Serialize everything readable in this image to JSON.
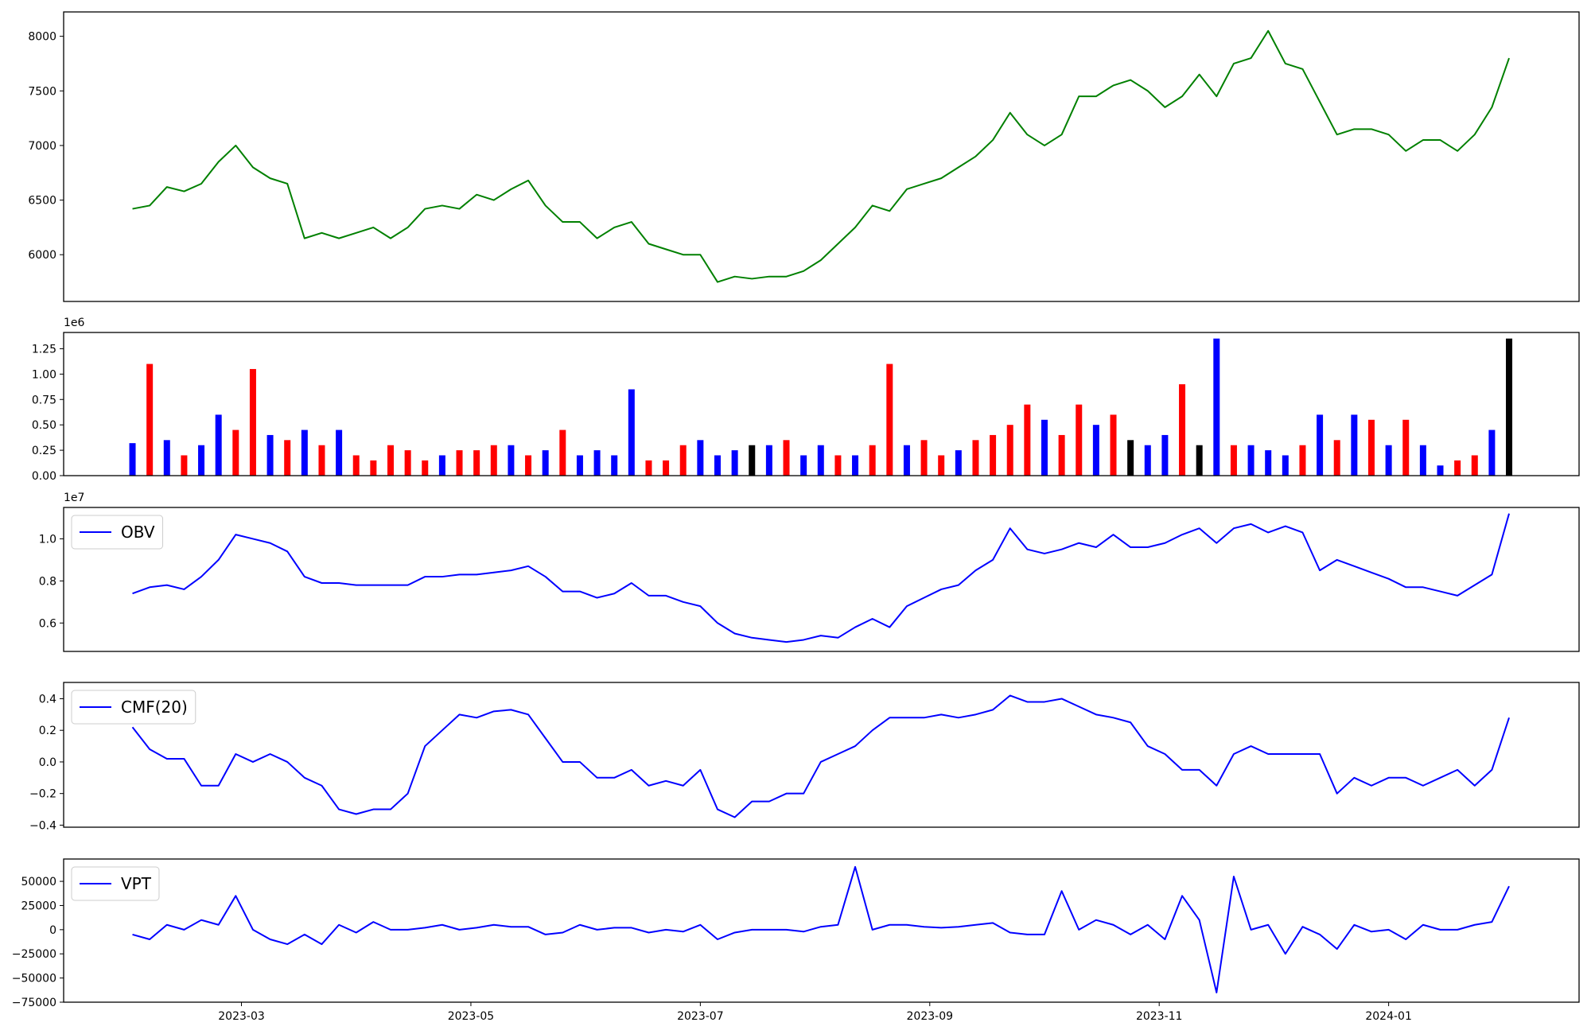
{
  "chart_data": [
    {
      "type": "line",
      "color": "green",
      "x": [
        1.05,
        1.2,
        1.35,
        1.5,
        1.65,
        1.8,
        1.95,
        2.1,
        2.25,
        2.4,
        2.55,
        2.7,
        2.85,
        3,
        3.15,
        3.3,
        3.45,
        3.6,
        3.75,
        3.9,
        4.05,
        4.2,
        4.35,
        4.5,
        4.65,
        4.8,
        4.95,
        5.1,
        5.25,
        5.4,
        5.55,
        5.7,
        5.85,
        6,
        6.15,
        6.3,
        6.45,
        6.6,
        6.75,
        6.9,
        7.05,
        7.2,
        7.35,
        7.5,
        7.65,
        7.8,
        7.95,
        8.1,
        8.25,
        8.4,
        8.55,
        8.7,
        8.85,
        9,
        9.15,
        9.3,
        9.45,
        9.6,
        9.75,
        9.9,
        10.05,
        10.2,
        10.35,
        10.5,
        10.65,
        10.8,
        10.95,
        11.1,
        11.25,
        11.4,
        11.55,
        11.7,
        11.85,
        12,
        12.15,
        12.3,
        12.45,
        12.6,
        12.75,
        12.9,
        13.05
      ],
      "values": [
        6420,
        6450,
        6620,
        6580,
        6650,
        6850,
        7000,
        6800,
        6700,
        6650,
        6150,
        6200,
        6150,
        6200,
        6250,
        6150,
        6250,
        6420,
        6450,
        6420,
        6550,
        6500,
        6600,
        6680,
        6450,
        6300,
        6300,
        6150,
        6250,
        6300,
        6100,
        6050,
        6000,
        6000,
        5750,
        5800,
        5780,
        5800,
        5800,
        5850,
        5950,
        6100,
        6250,
        6450,
        6400,
        6600,
        6650,
        6700,
        6800,
        6900,
        7050,
        7300,
        7100,
        7000,
        7100,
        7450,
        7450,
        7550,
        7600,
        7500,
        7350,
        7450,
        7650,
        7450,
        7750,
        7800,
        8050,
        7750,
        7700,
        7400,
        7100,
        7150,
        7150,
        7100,
        6950,
        7050,
        7050,
        6950,
        7100,
        7350,
        7800
      ],
      "xlim": [
        0.45,
        13.66
      ],
      "ylim": [
        5572,
        8223
      ],
      "yticks": [
        6000,
        6500,
        7000,
        7500,
        8000
      ]
    },
    {
      "type": "bar",
      "y_offset_label": "1e6",
      "x": [
        1.05,
        1.2,
        1.35,
        1.5,
        1.65,
        1.8,
        1.95,
        2.1,
        2.25,
        2.4,
        2.55,
        2.7,
        2.85,
        3,
        3.15,
        3.3,
        3.45,
        3.6,
        3.75,
        3.9,
        4.05,
        4.2,
        4.35,
        4.5,
        4.65,
        4.8,
        4.95,
        5.1,
        5.25,
        5.4,
        5.55,
        5.7,
        5.85,
        6,
        6.15,
        6.3,
        6.45,
        6.6,
        6.75,
        6.9,
        7.05,
        7.2,
        7.35,
        7.5,
        7.65,
        7.8,
        7.95,
        8.1,
        8.25,
        8.4,
        8.55,
        8.7,
        8.85,
        9,
        9.15,
        9.3,
        9.45,
        9.6,
        9.75,
        9.9,
        10.05,
        10.2,
        10.35,
        10.5,
        10.65,
        10.8,
        10.95,
        11.1,
        11.25,
        11.4,
        11.55,
        11.7,
        11.85,
        12,
        12.15,
        12.3,
        12.45,
        12.6,
        12.75,
        12.9,
        13.05
      ],
      "values": [
        320000,
        1100000,
        350000,
        200000,
        300000,
        600000,
        450000,
        1050000,
        400000,
        350000,
        450000,
        300000,
        450000,
        200000,
        150000,
        300000,
        250000,
        150000,
        200000,
        250000,
        250000,
        300000,
        300000,
        200000,
        250000,
        450000,
        200000,
        250000,
        200000,
        850000,
        150000,
        150000,
        300000,
        350000,
        200000,
        250000,
        300000,
        300000,
        350000,
        200000,
        300000,
        200000,
        200000,
        300000,
        1100000,
        300000,
        350000,
        200000,
        250000,
        350000,
        400000,
        500000,
        700000,
        550000,
        400000,
        700000,
        500000,
        600000,
        350000,
        300000,
        400000,
        900000,
        300000,
        1350000,
        300000,
        300000,
        250000,
        200000,
        300000,
        600000,
        350000,
        600000,
        550000,
        300000,
        550000,
        300000,
        100000,
        150000,
        200000,
        450000,
        1350000
      ],
      "colors": [
        "blue",
        "red",
        "blue",
        "red",
        "blue",
        "blue",
        "red",
        "red",
        "blue",
        "red",
        "blue",
        "red",
        "blue",
        "red",
        "red",
        "red",
        "red",
        "red",
        "blue",
        "red",
        "red",
        "red",
        "blue",
        "red",
        "blue",
        "red",
        "blue",
        "blue",
        "blue",
        "blue",
        "red",
        "red",
        "red",
        "blue",
        "blue",
        "blue",
        "black",
        "blue",
        "red",
        "blue",
        "blue",
        "red",
        "blue",
        "red",
        "red",
        "blue",
        "red",
        "red",
        "blue",
        "red",
        "red",
        "red",
        "red",
        "blue",
        "red",
        "red",
        "blue",
        "red",
        "black",
        "blue",
        "blue",
        "red",
        "black",
        "blue",
        "red",
        "blue",
        "blue",
        "blue",
        "red",
        "blue",
        "red",
        "blue",
        "red",
        "blue",
        "red",
        "blue",
        "blue",
        "red",
        "red",
        "blue",
        "black"
      ],
      "xlim": [
        0.45,
        13.66
      ],
      "ylim": [
        0,
        1410000
      ],
      "yticks": [
        {
          "value": 0,
          "label": "0.00"
        },
        {
          "value": 250000,
          "label": "0.25"
        },
        {
          "value": 500000,
          "label": "0.50"
        },
        {
          "value": 750000,
          "label": "0.75"
        },
        {
          "value": 1000000,
          "label": "1.00"
        },
        {
          "value": 1250000,
          "label": "1.25"
        }
      ]
    },
    {
      "type": "line",
      "y_offset_label": "1e7",
      "legend": "upper left",
      "x": [
        1.05,
        1.2,
        1.35,
        1.5,
        1.65,
        1.8,
        1.95,
        2.1,
        2.25,
        2.4,
        2.55,
        2.7,
        2.85,
        3,
        3.15,
        3.3,
        3.45,
        3.6,
        3.75,
        3.9,
        4.05,
        4.2,
        4.35,
        4.5,
        4.65,
        4.8,
        4.95,
        5.1,
        5.25,
        5.4,
        5.55,
        5.7,
        5.85,
        6,
        6.15,
        6.3,
        6.45,
        6.6,
        6.75,
        6.9,
        7.05,
        7.2,
        7.35,
        7.5,
        7.65,
        7.8,
        7.95,
        8.1,
        8.25,
        8.4,
        8.55,
        8.7,
        8.85,
        9,
        9.15,
        9.3,
        9.45,
        9.6,
        9.75,
        9.9,
        10.05,
        10.2,
        10.35,
        10.5,
        10.65,
        10.8,
        10.95,
        11.1,
        11.25,
        11.4,
        11.55,
        11.7,
        11.85,
        12,
        12.15,
        12.3,
        12.45,
        12.6,
        12.75,
        12.9,
        13.05
      ],
      "series": [
        {
          "name": "OBV",
          "color": "blue",
          "values": [
            7400000,
            7700000,
            7800000,
            7600000,
            8200000,
            9000000,
            10200000,
            10000000,
            9800000,
            9400000,
            8200000,
            7900000,
            7900000,
            7800000,
            7800000,
            7800000,
            7800000,
            8200000,
            8200000,
            8300000,
            8300000,
            8400000,
            8500000,
            8700000,
            8200000,
            7500000,
            7500000,
            7200000,
            7400000,
            7900000,
            7300000,
            7300000,
            7000000,
            6800000,
            6000000,
            5500000,
            5300000,
            5200000,
            5100000,
            5200000,
            5400000,
            5300000,
            5800000,
            6200000,
            5800000,
            6800000,
            7200000,
            7600000,
            7800000,
            8500000,
            9000000,
            10500000,
            9500000,
            9300000,
            9500000,
            9800000,
            9600000,
            10200000,
            9600000,
            9600000,
            9800000,
            10200000,
            10500000,
            9800000,
            10500000,
            10700000,
            10300000,
            10600000,
            10300000,
            8500000,
            9000000,
            8700000,
            8400000,
            8100000,
            7700000,
            7700000,
            7500000,
            7300000,
            7800000,
            8300000,
            11200000
          ]
        }
      ],
      "xlim": [
        0.45,
        13.66
      ],
      "ylim": [
        4650000,
        11490000
      ],
      "yticks": [
        {
          "value": 6000000,
          "label": "0.6"
        },
        {
          "value": 8000000,
          "label": "0.8"
        },
        {
          "value": 10000000,
          "label": "1.0"
        }
      ]
    },
    {
      "type": "line",
      "legend": "upper left",
      "x": [
        1.05,
        1.2,
        1.35,
        1.5,
        1.65,
        1.8,
        1.95,
        2.1,
        2.25,
        2.4,
        2.55,
        2.7,
        2.85,
        3,
        3.15,
        3.3,
        3.45,
        3.6,
        3.75,
        3.9,
        4.05,
        4.2,
        4.35,
        4.5,
        4.65,
        4.8,
        4.95,
        5.1,
        5.25,
        5.4,
        5.55,
        5.7,
        5.85,
        6,
        6.15,
        6.3,
        6.45,
        6.6,
        6.75,
        6.9,
        7.05,
        7.2,
        7.35,
        7.5,
        7.65,
        7.8,
        7.95,
        8.1,
        8.25,
        8.4,
        8.55,
        8.7,
        8.85,
        9,
        9.15,
        9.3,
        9.45,
        9.6,
        9.75,
        9.9,
        10.05,
        10.2,
        10.35,
        10.5,
        10.65,
        10.8,
        10.95,
        11.1,
        11.25,
        11.4,
        11.55,
        11.7,
        11.85,
        12,
        12.15,
        12.3,
        12.45,
        12.6,
        12.75,
        12.9,
        13.05
      ],
      "series": [
        {
          "name": "CMF(20)",
          "color": "blue",
          "values": [
            0.22,
            0.08,
            0.02,
            0.02,
            -0.15,
            -0.15,
            0.05,
            0,
            0.05,
            0,
            -0.1,
            -0.15,
            -0.3,
            -0.33,
            -0.3,
            -0.3,
            -0.2,
            0.1,
            0.2,
            0.3,
            0.28,
            0.32,
            0.33,
            0.3,
            0.15,
            0,
            0,
            -0.1,
            -0.1,
            -0.05,
            -0.15,
            -0.12,
            -0.15,
            -0.05,
            -0.3,
            -0.35,
            -0.25,
            -0.25,
            -0.2,
            -0.2,
            0,
            0.05,
            0.1,
            0.2,
            0.28,
            0.28,
            0.28,
            0.3,
            0.28,
            0.3,
            0.33,
            0.42,
            0.38,
            0.38,
            0.4,
            0.35,
            0.3,
            0.28,
            0.25,
            0.1,
            0.05,
            -0.05,
            -0.05,
            -0.15,
            0.05,
            0.1,
            0.05,
            0.05,
            0.05,
            0.05,
            -0.2,
            -0.1,
            -0.15,
            -0.1,
            -0.1,
            -0.15,
            -0.1,
            -0.05,
            -0.15,
            -0.05,
            0.28
          ]
        }
      ],
      "xlim": [
        0.45,
        13.66
      ],
      "ylim": [
        -0.413,
        0.503
      ],
      "yticks": [
        {
          "value": -0.4,
          "label": "−0.4"
        },
        {
          "value": -0.2,
          "label": "−0.2"
        },
        {
          "value": 0,
          "label": "0.0"
        },
        0.2,
        0.4
      ]
    },
    {
      "type": "line",
      "legend": "upper left",
      "x": [
        1.05,
        1.2,
        1.35,
        1.5,
        1.65,
        1.8,
        1.95,
        2.1,
        2.25,
        2.4,
        2.55,
        2.7,
        2.85,
        3,
        3.15,
        3.3,
        3.45,
        3.6,
        3.75,
        3.9,
        4.05,
        4.2,
        4.35,
        4.5,
        4.65,
        4.8,
        4.95,
        5.1,
        5.25,
        5.4,
        5.55,
        5.7,
        5.85,
        6,
        6.15,
        6.3,
        6.45,
        6.6,
        6.75,
        6.9,
        7.05,
        7.2,
        7.35,
        7.5,
        7.65,
        7.8,
        7.95,
        8.1,
        8.25,
        8.4,
        8.55,
        8.7,
        8.85,
        9,
        9.15,
        9.3,
        9.45,
        9.6,
        9.75,
        9.9,
        10.05,
        10.2,
        10.35,
        10.5,
        10.65,
        10.8,
        10.95,
        11.1,
        11.25,
        11.4,
        11.55,
        11.7,
        11.85,
        12,
        12.15,
        12.3,
        12.45,
        12.6,
        12.75,
        12.9,
        13.05
      ],
      "series": [
        {
          "name": "VPT",
          "color": "blue",
          "values": [
            -5000,
            -10000,
            5000,
            0,
            10000,
            5000,
            35000,
            0,
            -10000,
            -15000,
            -5000,
            -15000,
            5000,
            -3000,
            8000,
            0,
            0,
            2000,
            5000,
            0,
            2000,
            5000,
            3000,
            3000,
            -5000,
            -3000,
            5000,
            0,
            2000,
            2000,
            -3000,
            0,
            -2000,
            5000,
            -10000,
            -3000,
            0,
            0,
            0,
            -2000,
            3000,
            5000,
            65000,
            0,
            5000,
            5000,
            3000,
            2000,
            3000,
            5000,
            7000,
            -3000,
            -5000,
            -5000,
            40000,
            0,
            10000,
            5000,
            -5000,
            5000,
            -10000,
            35000,
            10000,
            -65000,
            55000,
            0,
            5000,
            -25000,
            3000,
            -5000,
            -20000,
            5000,
            -2000,
            0,
            -10000,
            5000,
            0,
            0,
            5000,
            8000,
            45000
          ]
        }
      ],
      "xlim": [
        0.45,
        13.66
      ],
      "ylim": [
        -75000,
        73100
      ],
      "yticks": [
        {
          "value": -75000,
          "label": "−75000"
        },
        {
          "value": -50000,
          "label": "−50000"
        },
        {
          "value": -25000,
          "label": "−25000"
        },
        0,
        25000,
        50000
      ],
      "xticks": [
        {
          "value": 2,
          "label": "2023-03"
        },
        {
          "value": 4,
          "label": "2023-05"
        },
        {
          "value": 6,
          "label": "2023-07"
        },
        {
          "value": 8,
          "label": "2023-09"
        },
        {
          "value": 10,
          "label": "2023-11"
        },
        {
          "value": 12,
          "label": "2024-01"
        }
      ]
    }
  ]
}
